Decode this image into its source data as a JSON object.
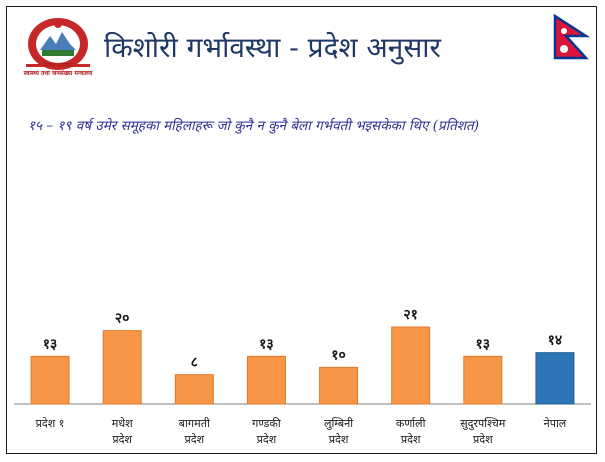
{
  "header": {
    "title": "किशोरी गर्भावस्था - प्रदेश अनुसार",
    "subtitle": "१५ – १९ वर्ष उमेर समूहका महिलाहरू जो कुनै न कुनै बेला गर्भवती भइसकेका थिए (प्रतिशत)",
    "emblem_line1": "नेपाल सरकार",
    "emblem_line2": "स्वास्थ्य तथा जनसंख्या मन्त्रालय"
  },
  "colors": {
    "bar": "#f79646",
    "bar_highlight": "#2e75b6",
    "title": "#1f3864",
    "subtitle": "#2e3092"
  },
  "icons": {
    "emblem": "nepal-government-emblem",
    "flag": "nepal-flag"
  },
  "chart_data": {
    "type": "bar",
    "title": "किशोरी गर्भावस्था - प्रदेश अनुसार",
    "ylabel": "",
    "xlabel": "",
    "ylim": [
      0,
      25
    ],
    "grid": false,
    "legend": "none",
    "categories": [
      [
        "प्रदेश १"
      ],
      [
        "मधेश",
        "प्रदेश"
      ],
      [
        "बागमती",
        "प्रदेश"
      ],
      [
        "गण्डकी",
        "प्रदेश"
      ],
      [
        "लुम्बिनी",
        "प्रदेश"
      ],
      [
        "कर्णाली",
        "प्रदेश"
      ],
      [
        "सुदुरपश्चिम",
        "प्रदेश"
      ],
      [
        "नेपाल"
      ]
    ],
    "values": [
      13,
      20,
      8,
      13,
      10,
      21,
      13,
      14
    ],
    "value_labels": [
      "१३",
      "२०",
      "८",
      "१३",
      "१०",
      "२१",
      "१३",
      "१४"
    ],
    "highlight_index": 7
  }
}
